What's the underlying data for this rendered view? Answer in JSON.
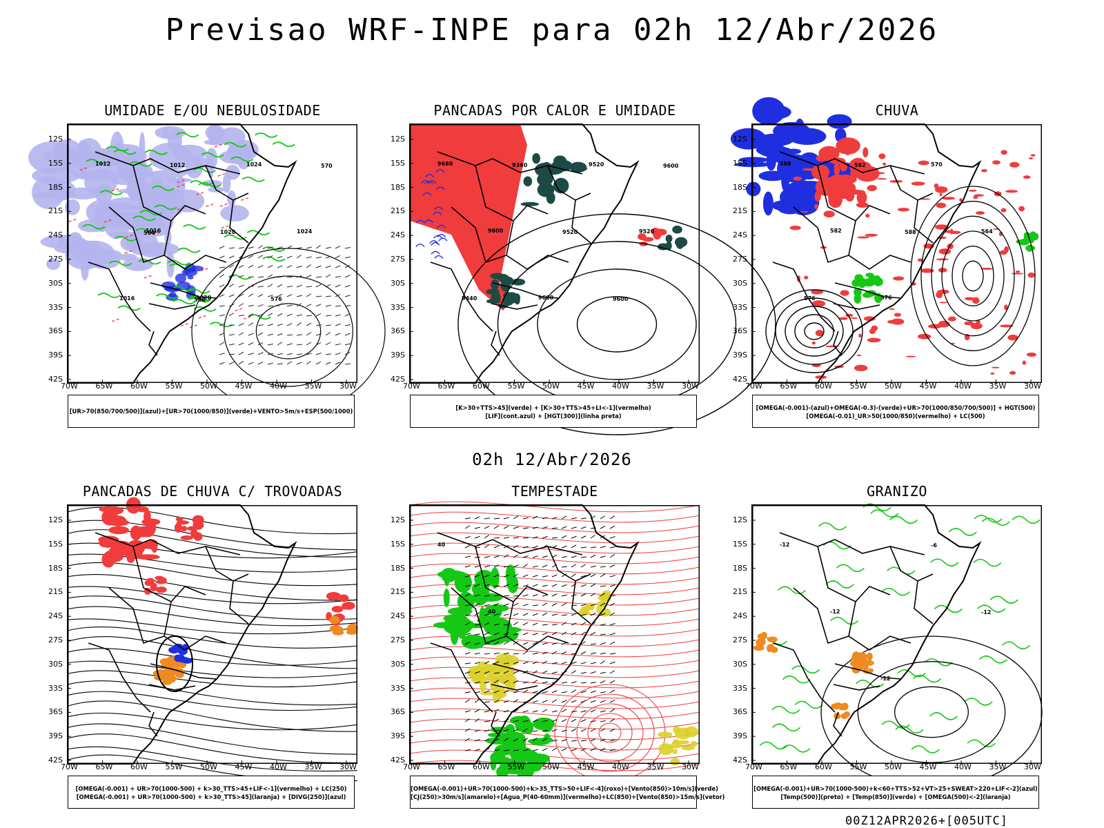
{
  "header": {
    "title": "Previsao WRF-INPE  para 02h 12/Abr/2026"
  },
  "middle_label": "02h 12/Abr/2026",
  "footer": "00Z12APR2026+[005UTC]",
  "axes": {
    "lat_ticks": [
      "12S",
      "15S",
      "18S",
      "21S",
      "24S",
      "27S",
      "30S",
      "33S",
      "36S",
      "39S",
      "42S"
    ],
    "lon_ticks": [
      "70W",
      "65W",
      "60W",
      "55W",
      "50W",
      "45W",
      "40W",
      "35W",
      "30W"
    ]
  },
  "colors": {
    "blue": "#1f2fe0",
    "green": "#14c814",
    "red": "#f03c3c",
    "darkteal": "#1e4a46",
    "orange": "#ee8a20",
    "yellow": "#dcd02a",
    "lavender": "#b4b4ee"
  },
  "panels": [
    {
      "title": "UMIDADE E/OU NEBULOSIDADE",
      "legend_line1": "[UR>70(850/700/500)](azul)+[UR>70(1000/850)](verde)+VENTO>5m/s+ESP(500/1000)",
      "legend_line2": "",
      "labels": [
        "1012",
        "1016",
        "1020",
        "1024",
        "1024",
        "1016",
        "1012",
        "1020",
        "576",
        "570",
        "564",
        "558"
      ]
    },
    {
      "title": "PANCADAS POR CALOR E UMIDADE",
      "legend_line1": "[K>30+TTS>45](verde) + [K>30+TTS>45+LI<-1](vermelho)",
      "legend_line2": "[LIF](cont.azul) + [HGT(300)](linha preta)",
      "labels": [
        "9680",
        "9600",
        "9600",
        "9520",
        "9520",
        "9440",
        "9360",
        "9520",
        "9600",
        "9600"
      ]
    },
    {
      "title": "CHUVA",
      "legend_line1": "[OMEGA(-0.001)-(azul)+OMEGA(-0.3)-(verde)+UR>70(1000/850/700/500)] + HGT(500)",
      "legend_line2": "[OMEGA(-0.01)_UR>50(1000/850)(vermelho) + LC(500)",
      "labels": [
        "588",
        "582",
        "576",
        "570",
        "564",
        "576",
        "582",
        "588"
      ]
    },
    {
      "title": "PANCADAS DE CHUVA C/ TROVOADAS",
      "legend_line1": "[OMEGA(-0.001) + UR>70(1000-500) + k>30_TTS>45+LIF<-1](vermelho) + LC(250)",
      "legend_line2": "[OMEGA(-0.001) + UR>70(1000-500) + k>30_TTS>45](laranja) + [DIVG(250)](azul)",
      "labels": []
    },
    {
      "title": "TEMPESTADE",
      "legend_line1": "[OMEGA(-0.001)+UR>70(1000-500)+k>35_TTS>50+LIF<-4](roxo)+[Vento(850)>10m/s](verde)",
      "legend_line2": "[CJ(250)>30m/s](amarelo)+[Agua_P(40-60mm)](vermelho)+LC(850)+[Vento(850)>15m/s](vetor)",
      "labels": [
        "40",
        "40"
      ]
    },
    {
      "title": "GRANIZO",
      "legend_line1": "[OMEGA(-0.001)+UR>70(1000-500)+k<60+TTS>52+VT>25+SWEAT>220+LIF<-2](azul)",
      "legend_line2": "[Temp(500)](preto) + [Temp(850)](verde) + [OMEGA(500)<-2](laranja)",
      "labels": [
        "-12",
        "-12",
        "-12",
        "-6",
        "-12"
      ]
    }
  ]
}
